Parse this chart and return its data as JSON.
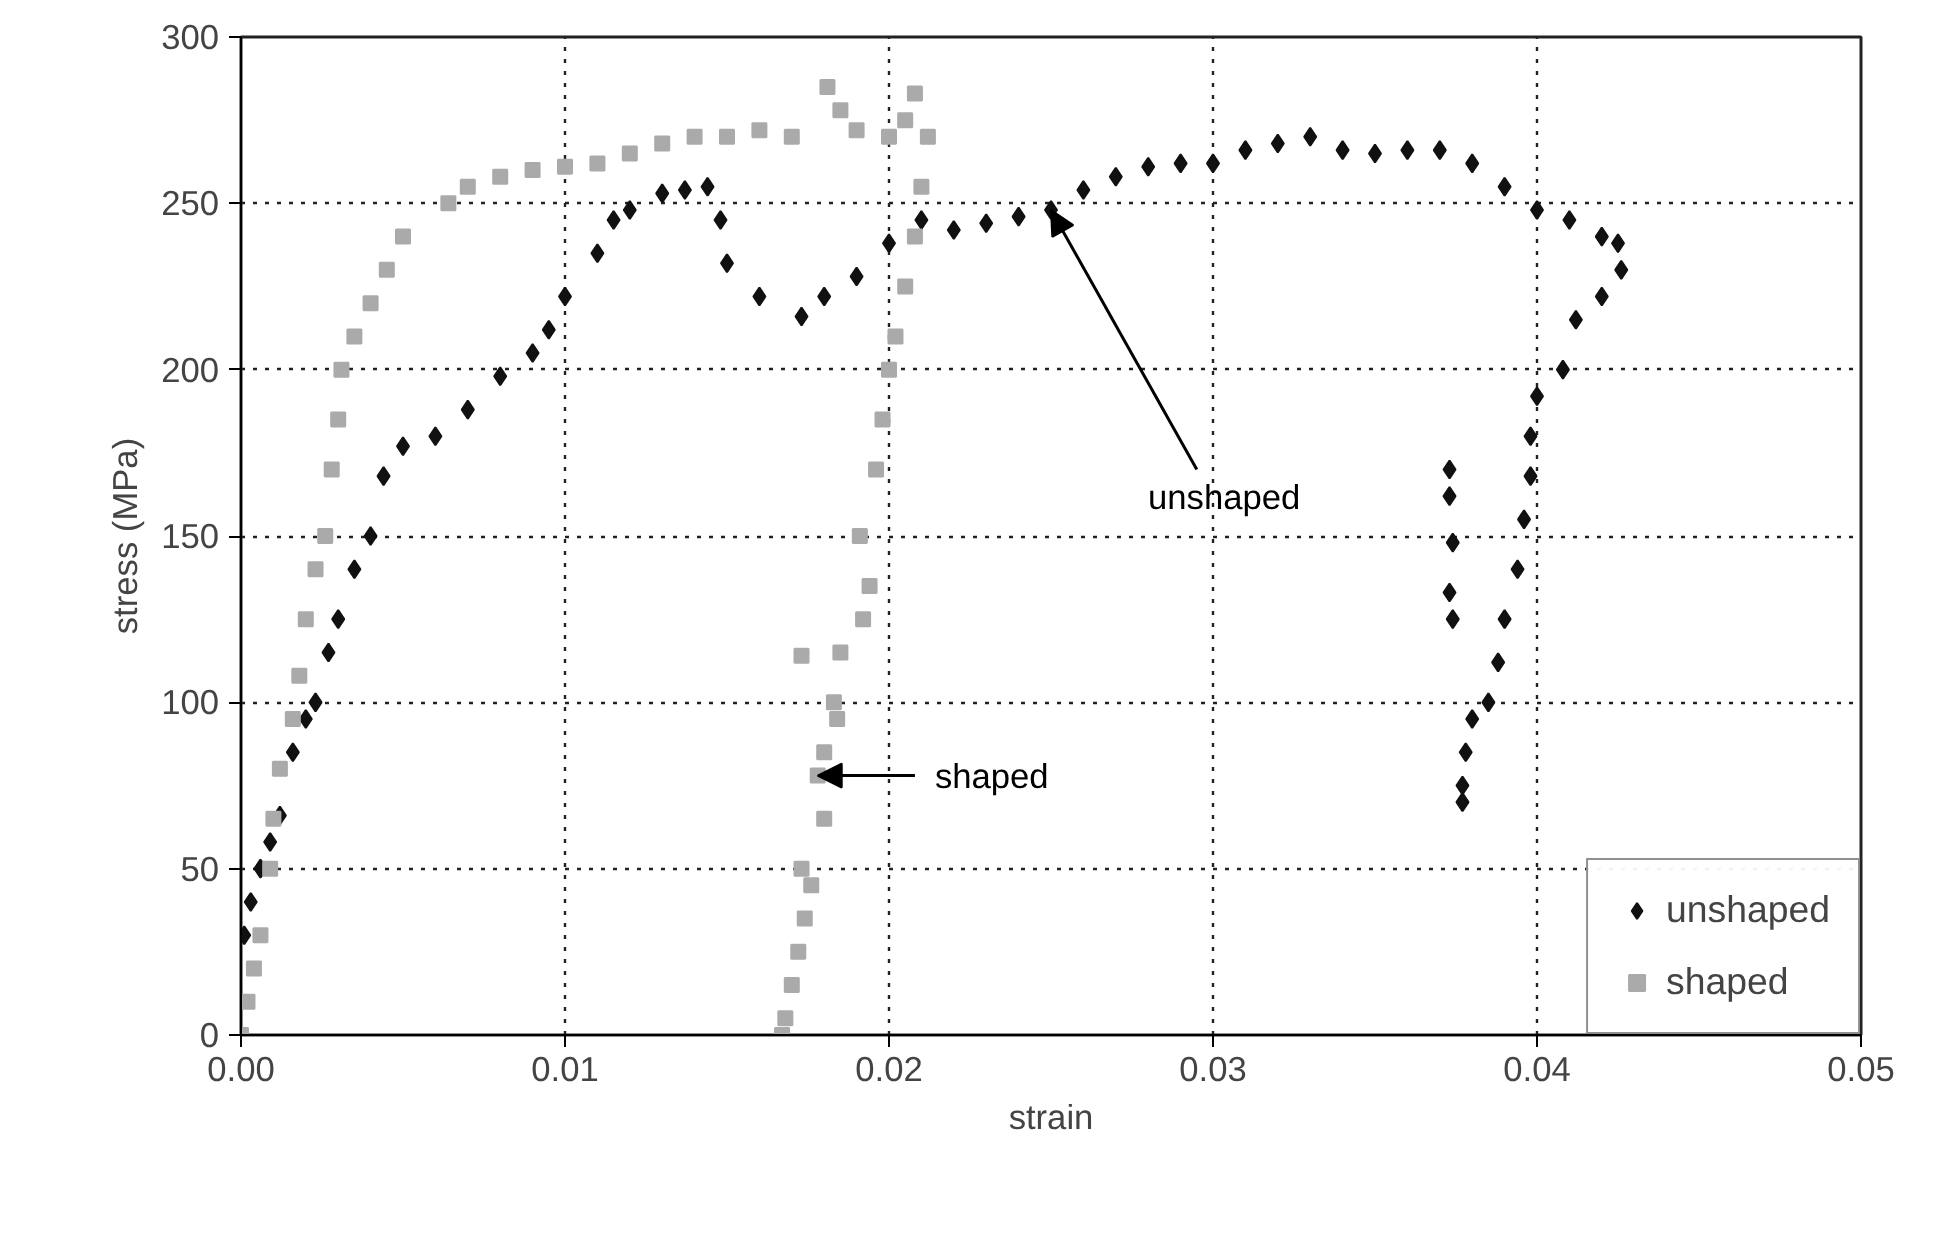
{
  "chart_data": {
    "type": "scatter",
    "xlabel": "strain",
    "ylabel": "stress (MPa)",
    "xlim": [
      0,
      0.05
    ],
    "ylim": [
      0,
      300
    ],
    "xticks": [
      {
        "value": 0,
        "label": "0.00"
      },
      {
        "value": 0.01,
        "label": "0.01"
      },
      {
        "value": 0.02,
        "label": "0.02"
      },
      {
        "value": 0.03,
        "label": "0.03"
      },
      {
        "value": 0.04,
        "label": "0.04"
      },
      {
        "value": 0.05,
        "label": "0.05"
      }
    ],
    "yticks": [
      0,
      50,
      100,
      150,
      200,
      250,
      300
    ],
    "grid": true,
    "legend": "bottom right",
    "series": [
      {
        "name": "unshaped",
        "color": "#111111",
        "marker": "diamond",
        "x": [
          0.0001,
          0.0003,
          0.0006,
          0.0009,
          0.0012,
          0.0016,
          0.002,
          0.0023,
          0.0027,
          0.003,
          0.0035,
          0.004,
          0.0044,
          0.005,
          0.006,
          0.007,
          0.008,
          0.009,
          0.0095,
          0.01,
          0.011,
          0.0115,
          0.012,
          0.013,
          0.0137,
          0.0144,
          0.0148,
          0.015,
          0.016,
          0.0173,
          0.018,
          0.019,
          0.02,
          0.021,
          0.022,
          0.023,
          0.024,
          0.025,
          0.026,
          0.027,
          0.028,
          0.029,
          0.03,
          0.031,
          0.032,
          0.033,
          0.034,
          0.035,
          0.036,
          0.037,
          0.038,
          0.039,
          0.04,
          0.041,
          0.042,
          0.0425,
          0.0426,
          0.042,
          0.0412,
          0.0408,
          0.04,
          0.0398,
          0.0398,
          0.0396,
          0.0394,
          0.039,
          0.0388,
          0.0385,
          0.038,
          0.0378,
          0.0377,
          0.0377,
          0.0373,
          0.0373,
          0.0374,
          0.0373,
          0.0374
        ],
        "values": [
          30,
          40,
          50,
          58,
          66,
          85,
          95,
          100,
          115,
          125,
          140,
          150,
          168,
          177,
          180,
          188,
          198,
          205,
          212,
          222,
          235,
          245,
          248,
          253,
          254,
          255,
          245,
          232,
          222,
          216,
          222,
          228,
          238,
          245,
          242,
          244,
          246,
          248,
          254,
          258,
          261,
          262,
          262,
          266,
          268,
          270,
          266,
          265,
          266,
          266,
          262,
          255,
          248,
          245,
          240,
          238,
          230,
          222,
          215,
          200,
          192,
          180,
          168,
          155,
          140,
          125,
          112,
          100,
          95,
          85,
          75,
          70,
          170,
          162,
          148,
          133,
          125
        ]
      },
      {
        "name": "shaped",
        "color": "#aaaaaa",
        "marker": "square",
        "x": [
          0.0,
          0.0002,
          0.0004,
          0.0006,
          0.0009,
          0.001,
          0.0012,
          0.0016,
          0.0018,
          0.002,
          0.0023,
          0.0026,
          0.0028,
          0.003,
          0.0031,
          0.0035,
          0.004,
          0.0045,
          0.005,
          0.0064,
          0.007,
          0.008,
          0.009,
          0.01,
          0.011,
          0.012,
          0.013,
          0.014,
          0.015,
          0.016,
          0.017,
          0.0181,
          0.0185,
          0.019,
          0.02,
          0.0205,
          0.0208,
          0.0212,
          0.021,
          0.0208,
          0.0205,
          0.0202,
          0.02,
          0.0198,
          0.0196,
          0.0191,
          0.0194,
          0.0192,
          0.0185,
          0.0183,
          0.0184,
          0.018,
          0.0178,
          0.018,
          0.0173,
          0.0176,
          0.0174,
          0.0172,
          0.017,
          0.0168,
          0.0167,
          0.0173
        ],
        "values": [
          0,
          10,
          20,
          30,
          50,
          65,
          80,
          95,
          108,
          125,
          140,
          150,
          170,
          185,
          200,
          210,
          220,
          230,
          240,
          250,
          255,
          258,
          260,
          261,
          262,
          265,
          268,
          270,
          270,
          272,
          270,
          285,
          278,
          272,
          270,
          275,
          283,
          270,
          255,
          240,
          225,
          210,
          200,
          185,
          170,
          150,
          135,
          125,
          115,
          100,
          95,
          85,
          78,
          65,
          50,
          45,
          35,
          25,
          15,
          5,
          0,
          114
        ]
      }
    ],
    "annotations": [
      {
        "text": "unshaped",
        "x": 0.025,
        "y": 248
      },
      {
        "text": "shaped",
        "x": 0.0178,
        "y": 78
      }
    ]
  }
}
